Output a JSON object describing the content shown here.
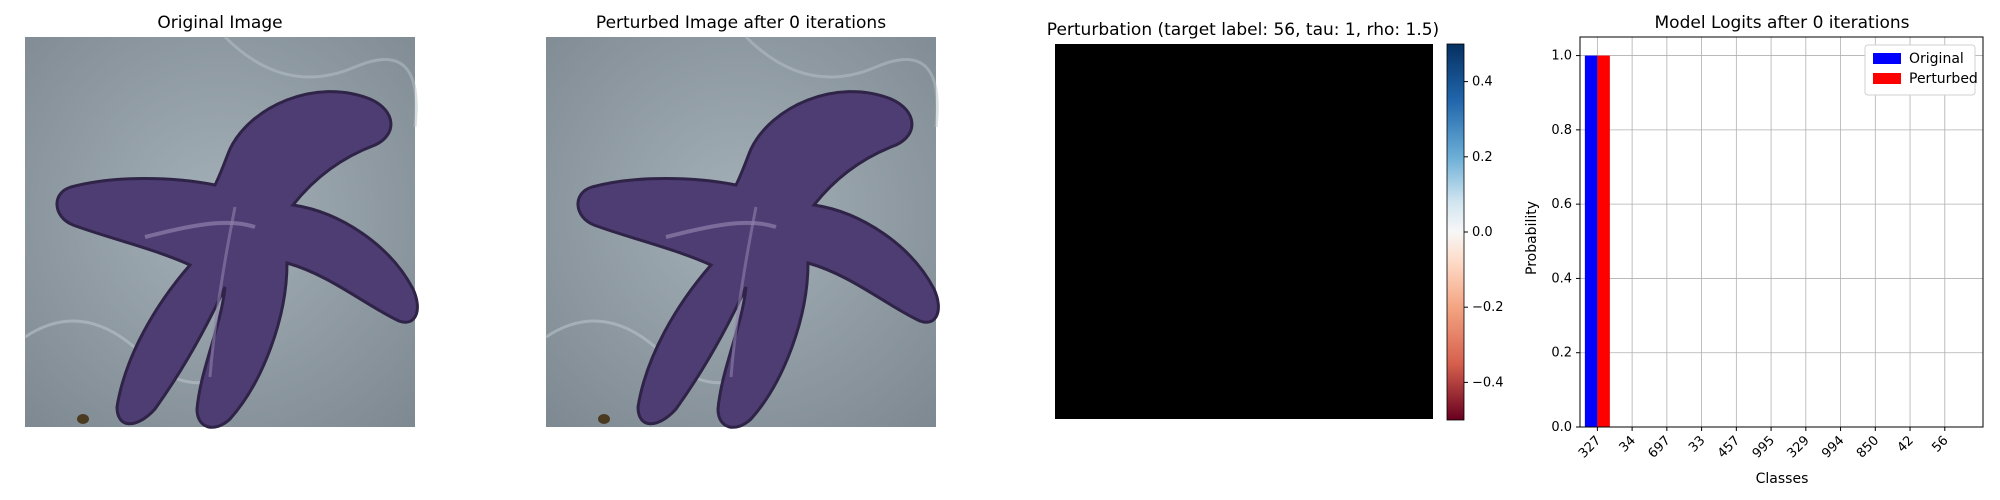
{
  "panels": {
    "original": {
      "title": "Original Image"
    },
    "perturbed": {
      "title": "Perturbed Image after 0 iterations"
    },
    "perturbation": {
      "title": "Perturbation (target label: 56, tau: 1, rho: 1.5)",
      "colorbar": {
        "colormap": "RdBu",
        "range": [
          -0.5,
          0.5
        ],
        "ticks": [
          "0.4",
          "0.2",
          "0.0",
          "−0.2",
          "−0.4"
        ]
      }
    },
    "logits": {
      "title": "Model Logits after 0 iterations"
    }
  },
  "colors": {
    "original": "#0000ff",
    "perturbed": "#ff0000",
    "sand": "#8e9aa3",
    "starfish": "#4e3d72",
    "perturbation_fill": "#000000"
  },
  "chart_data": {
    "type": "bar",
    "title": "Model Logits after 0 iterations",
    "xlabel": "Classes",
    "ylabel": "Probability",
    "categories": [
      "327",
      "34",
      "697",
      "33",
      "457",
      "995",
      "329",
      "994",
      "850",
      "42",
      "56"
    ],
    "series": [
      {
        "name": "Original",
        "values": [
          1.0,
          0,
          0,
          0,
          0,
          0,
          0,
          0,
          0,
          0,
          0
        ]
      },
      {
        "name": "Perturbed",
        "values": [
          1.0,
          0,
          0,
          0,
          0,
          0,
          0,
          0,
          0,
          0,
          0
        ]
      }
    ],
    "ylim": [
      0,
      1.05
    ],
    "yticks": [
      0.0,
      0.2,
      0.4,
      0.6,
      0.8,
      1.0
    ],
    "grid": true,
    "legend": "top-right"
  }
}
